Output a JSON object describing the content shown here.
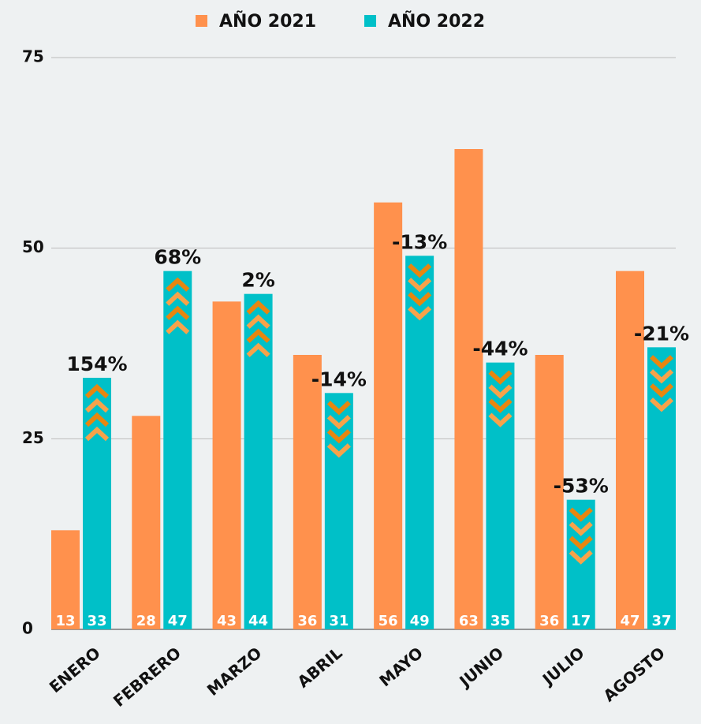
{
  "chart_data": {
    "type": "bar",
    "categories": [
      "ENERO",
      "FEBRERO",
      "MARZO",
      "ABRIL",
      "MAYO",
      "JUNIO",
      "JULIO",
      "AGOSTO"
    ],
    "series": [
      {
        "name": "AÑO 2021",
        "color": "#ff914d",
        "values": [
          13,
          28,
          43,
          36,
          56,
          63,
          36,
          47
        ]
      },
      {
        "name": "AÑO 2022",
        "color": "#00c0c8",
        "values": [
          33,
          47,
          44,
          31,
          49,
          35,
          17,
          37
        ]
      }
    ],
    "annotations": [
      "154%",
      "68%",
      "2%",
      "-14%",
      "-13%",
      "-44%",
      "-53%",
      "-21%"
    ],
    "ylim": [
      0,
      75
    ],
    "yticks": [
      0,
      25,
      50,
      75
    ],
    "grid": true,
    "legend": "top"
  }
}
